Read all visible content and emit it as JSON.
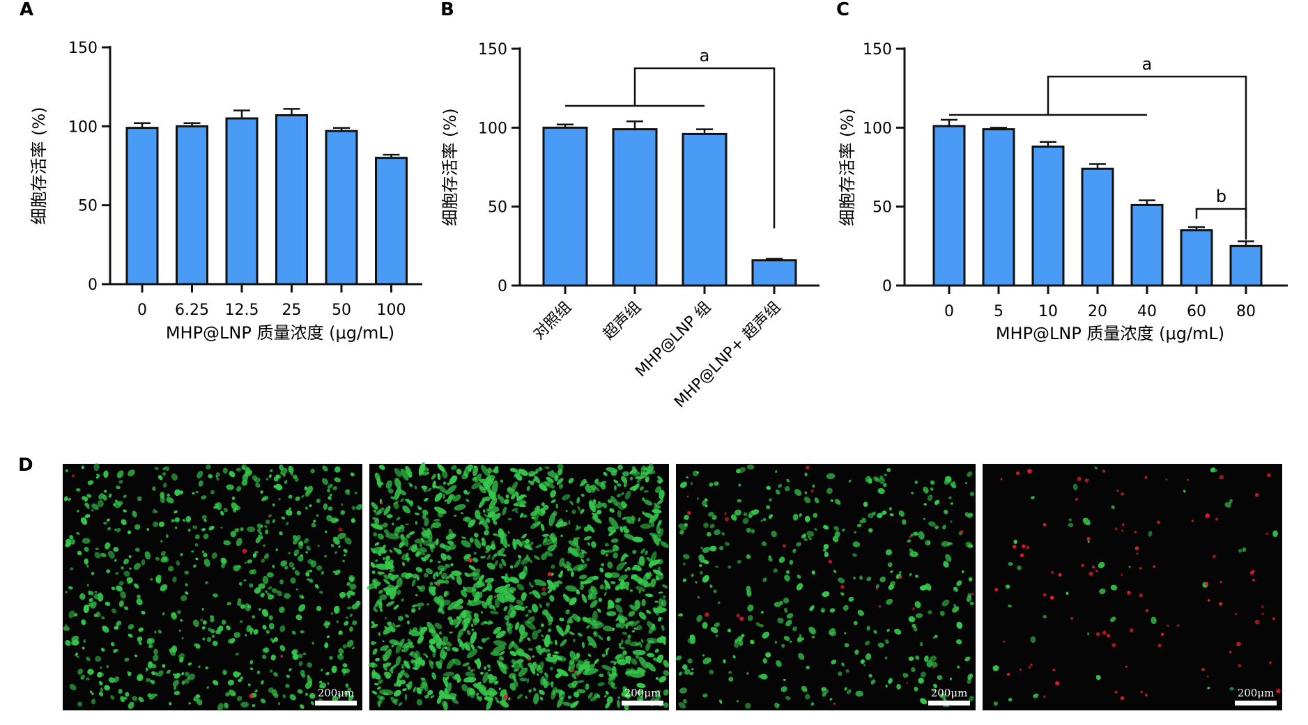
{
  "panels": {
    "A": "A",
    "B": "B",
    "C": "C",
    "D": "D"
  },
  "chart_data": [
    {
      "type": "bar",
      "panel": "A",
      "categories": [
        "0",
        "6.25",
        "12.5",
        "25",
        "50",
        "100"
      ],
      "values": [
        99,
        100,
        105,
        107,
        97,
        80
      ],
      "errors": [
        3,
        2,
        5,
        4,
        2,
        2
      ],
      "xlabel": "MHP@LNP 质量浓度 (μg/mL)",
      "ylabel": "细胞存活率 (%)",
      "yticks": [
        "0",
        "50",
        "100",
        "150"
      ],
      "ylim": [
        0,
        150
      ],
      "bar_color": "#4a9bf5",
      "significance": []
    },
    {
      "type": "bar",
      "panel": "B",
      "categories": [
        "对照组",
        "超声组",
        "MHP@LNP 组",
        "MHP@LNP+ 超声组"
      ],
      "values": [
        100,
        99,
        96,
        16
      ],
      "errors": [
        2,
        5,
        3,
        1
      ],
      "xlabel": "",
      "ylabel": "细胞存活率 (%)",
      "yticks": [
        "0",
        "50",
        "100",
        "150"
      ],
      "ylim": [
        0,
        150
      ],
      "bar_color": "#4a9bf5",
      "significance": [
        {
          "label": "a",
          "group_from": 0,
          "group_to": 2,
          "target": 3
        }
      ]
    },
    {
      "type": "bar",
      "panel": "C",
      "categories": [
        "0",
        "5",
        "10",
        "20",
        "40",
        "60",
        "80"
      ],
      "values": [
        101,
        99,
        88,
        74,
        51,
        35,
        25
      ],
      "errors": [
        4,
        1,
        3,
        3,
        3,
        2,
        3
      ],
      "xlabel": "MHP@LNP 质量浓度 (μg/mL)",
      "ylabel": "细胞存活率 (%)",
      "yticks": [
        "0",
        "50",
        "100",
        "150"
      ],
      "ylim": [
        0,
        150
      ],
      "bar_color": "#4a9bf5",
      "significance": [
        {
          "label": "a",
          "group_from": 0,
          "group_to": 4,
          "target": 6
        },
        {
          "label": "b",
          "group_from": 5,
          "group_to": 5,
          "target": 6
        }
      ]
    }
  ],
  "micrographs": {
    "scale_label": "200μm",
    "images": [
      {
        "density_green": 650,
        "density_red": 6
      },
      {
        "density_green": 1300,
        "density_red": 10
      },
      {
        "density_green": 380,
        "density_red": 22
      },
      {
        "density_green": 40,
        "density_red": 90
      }
    ],
    "colors": {
      "background": "#050505",
      "live": "#35c84a",
      "dead": "#e0222a"
    }
  }
}
